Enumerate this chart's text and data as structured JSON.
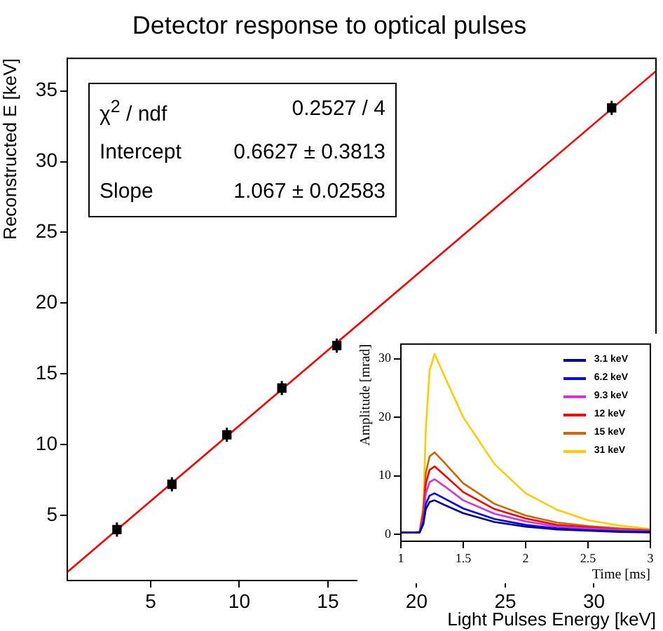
{
  "chart_data": [
    {
      "type": "scatter",
      "title": "Detector response to optical pulses",
      "xlabel": "Light Pulses Energy [keV]",
      "ylabel": "Reconstructed E [keV]",
      "xlim": [
        0.3,
        33.5
      ],
      "ylim": [
        0.4,
        37.3
      ],
      "xticks": [
        5,
        10,
        15,
        20,
        25,
        30
      ],
      "yticks": [
        5,
        10,
        15,
        20,
        25,
        30,
        35
      ],
      "annotations": [
        "χ$^{2}$ / ndf",
        "0.2527 / 4",
        "Intercept",
        "0.6627 ± 0.3813",
        "Slope",
        "1.067 ± 0.02583"
      ],
      "series": [
        {
          "marker": "square",
          "color": "#000000",
          "x": [
            3.1,
            6.2,
            9.3,
            12.4,
            15.5,
            31
          ],
          "values": [
            4.0,
            7.2,
            10.7,
            14.0,
            17.0,
            33.8
          ],
          "errors": [
            0.5,
            0.5,
            0.5,
            0.5,
            0.5,
            0.5
          ],
          "xerrors": [
            0.2,
            0.2,
            0.2,
            0.2,
            0.2,
            0.2
          ]
        },
        {
          "type": "line",
          "color": "#ff0000",
          "x": [
            0.3,
            33.5
          ],
          "values": [
            1.0,
            36.4
          ]
        }
      ]
    },
    {
      "type": "line",
      "xlabel": "Time [ms]",
      "ylabel": "Amplitude [mrad]",
      "xlim": [
        1,
        3
      ],
      "ylim": [
        -1.2,
        32.5
      ],
      "xticks": [
        1,
        1.5,
        2,
        2.5,
        3
      ],
      "yticks": [
        0,
        10,
        20,
        30
      ],
      "legend": "top right",
      "x": [
        1,
        1.1,
        1.15,
        1.18,
        1.2,
        1.23,
        1.27,
        1.35,
        1.5,
        1.75,
        2,
        2.25,
        2.5,
        2.75,
        3
      ],
      "series": [
        {
          "name": "3.1 keV",
          "color": "#000099",
          "values": [
            0.3,
            0.3,
            0.3,
            1.7,
            4.3,
            5.5,
            5.8,
            5.0,
            3.6,
            2.1,
            1.3,
            0.8,
            0.6,
            0.4,
            0.3
          ]
        },
        {
          "name": "6.2 keV",
          "color": "#0000ff",
          "values": [
            0.3,
            0.3,
            0.3,
            2.1,
            5.2,
            6.6,
            7.0,
            6.1,
            4.4,
            2.6,
            1.6,
            1.0,
            0.7,
            0.5,
            0.4
          ]
        },
        {
          "name": "9.3 keV",
          "color": "#d633d6",
          "values": [
            0.3,
            0.3,
            0.3,
            2.8,
            7.0,
            8.9,
            9.4,
            8.2,
            5.8,
            3.5,
            2.2,
            1.3,
            1.0,
            0.7,
            0.5
          ]
        },
        {
          "name": "12 keV",
          "color": "#ff0000",
          "values": [
            0.3,
            0.3,
            0.3,
            3.5,
            8.7,
            11.0,
            11.6,
            10.1,
            7.2,
            4.3,
            2.7,
            1.6,
            1.2,
            0.8,
            0.6
          ]
        },
        {
          "name": "15 keV",
          "color": "#cc6600",
          "values": [
            0.3,
            0.3,
            0.4,
            4.2,
            10.5,
            13.3,
            14.0,
            12.2,
            8.7,
            5.2,
            3.2,
            2.0,
            1.4,
            1.0,
            0.7
          ]
        },
        {
          "name": "31 keV",
          "color": "#ffcc00",
          "values": [
            0.3,
            0.3,
            0.4,
            5.0,
            18.0,
            28.0,
            30.8,
            27.0,
            20.0,
            12.0,
            7.0,
            4.2,
            2.4,
            1.5,
            0.9
          ]
        }
      ]
    }
  ]
}
